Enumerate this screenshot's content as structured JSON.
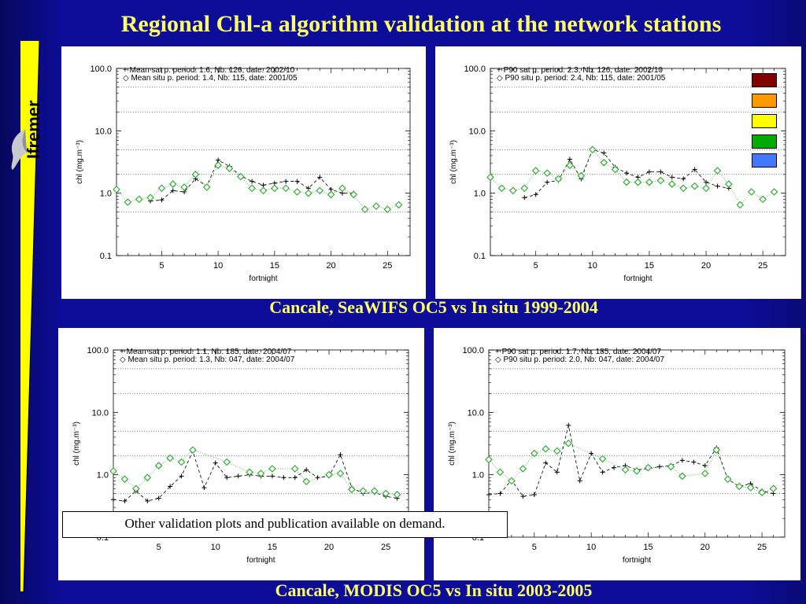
{
  "slide": {
    "title": "Regional Chl-a algorithm validation at the network stations",
    "caption_seawifs": "Cancale, SeaWIFS OC5 vs In situ 1999-2004",
    "caption_modis": "Cancale, MODIS OC5 vs In situ 2003-2005",
    "note": "Other validation plots and publication available on demand.",
    "logo_text": "Ifremer",
    "colors": {
      "background": "#0d0d9a",
      "title": "#ffff66",
      "sat": "#000000",
      "situ": "#22aa22"
    },
    "swatches": [
      "#800000",
      "#ff9900",
      "#ffff00",
      "#00aa00",
      "#4477ff"
    ]
  },
  "chart_data": [
    {
      "type": "scatter",
      "xlabel": "fortnight",
      "ylabel": "chl (mg.m⁻³)",
      "xlim": [
        1,
        27
      ],
      "ylim": [
        0.1,
        100
      ],
      "yscale": "log",
      "xticks": [
        "5",
        "10",
        "15",
        "20",
        "25"
      ],
      "yticks": [
        "0.1",
        "1.0",
        "10.0",
        "100.0"
      ],
      "legend": [
        "+  Mean sat p. period: 1.6, Nb: 126, date: 2002/10",
        "◇  Mean situ p. period: 1.4, Nb: 115, date: 2001/05"
      ],
      "series": [
        {
          "name": "Mean sat",
          "marker": "plus",
          "x": [
            4,
            5,
            6,
            7,
            8,
            9,
            10,
            11,
            12,
            13,
            14,
            15,
            16,
            17,
            18,
            19,
            20,
            21,
            22
          ],
          "y": [
            0.75,
            0.78,
            1.1,
            1.05,
            1.7,
            1.3,
            3.4,
            2.7,
            1.9,
            1.55,
            1.35,
            1.45,
            1.55,
            1.55,
            1.2,
            1.8,
            1.15,
            1.0,
            1.0
          ]
        },
        {
          "name": "Mean situ",
          "marker": "diamond",
          "x": [
            1,
            2,
            3,
            4,
            5,
            6,
            7,
            8,
            9,
            10,
            11,
            12,
            13,
            14,
            15,
            16,
            17,
            18,
            19,
            20,
            21,
            22,
            23,
            24,
            25,
            26
          ],
          "y": [
            1.15,
            0.72,
            0.8,
            0.85,
            1.2,
            1.4,
            1.25,
            2.0,
            1.25,
            2.8,
            2.5,
            1.85,
            1.2,
            1.1,
            1.2,
            1.2,
            1.05,
            1.0,
            1.1,
            0.95,
            1.2,
            0.95,
            0.55,
            0.62,
            0.55,
            0.65
          ]
        }
      ]
    },
    {
      "type": "scatter",
      "xlabel": "fortnight",
      "ylabel": "chl (mg.m⁻³)",
      "xlim": [
        1,
        27
      ],
      "ylim": [
        0.1,
        100
      ],
      "yscale": "log",
      "xticks": [
        "5",
        "10",
        "15",
        "20",
        "25"
      ],
      "yticks": [
        "0.1",
        "1.0",
        "10.0",
        "100.0"
      ],
      "legend": [
        "+  P90 sat p. period: 2.3, Nb: 126, date: 2002/10",
        "◇  P90 situ p. period: 2.4, Nb: 115, date: 2001/05"
      ],
      "series": [
        {
          "name": "P90 sat",
          "marker": "plus",
          "x": [
            4,
            5,
            6,
            7,
            8,
            9,
            10,
            11,
            12,
            13,
            14,
            15,
            16,
            17,
            18,
            19,
            20,
            21,
            22
          ],
          "y": [
            0.85,
            0.95,
            1.5,
            1.6,
            3.5,
            1.7,
            5.0,
            4.4,
            2.6,
            2.1,
            1.8,
            2.2,
            2.2,
            1.8,
            1.7,
            2.4,
            1.5,
            1.3,
            1.2
          ]
        },
        {
          "name": "P90 situ",
          "marker": "diamond",
          "x": [
            1,
            2,
            3,
            4,
            5,
            6,
            7,
            8,
            9,
            10,
            11,
            12,
            13,
            14,
            15,
            16,
            17,
            18,
            19,
            20,
            21,
            22,
            23,
            24,
            25,
            26
          ],
          "y": [
            1.8,
            1.2,
            1.1,
            1.2,
            2.3,
            2.1,
            1.7,
            2.8,
            1.9,
            5.0,
            3.1,
            2.4,
            1.5,
            1.5,
            1.5,
            1.6,
            1.4,
            1.2,
            1.3,
            1.2,
            2.3,
            1.4,
            0.65,
            1.05,
            0.8,
            1.05
          ]
        }
      ]
    },
    {
      "type": "scatter",
      "xlabel": "fortnight",
      "ylabel": "chl (mg.m⁻³)",
      "xlim": [
        1,
        27
      ],
      "ylim": [
        0.1,
        100
      ],
      "yscale": "log",
      "xticks": [
        "5",
        "10",
        "15",
        "20",
        "25"
      ],
      "yticks": [
        "0.1",
        "1.0",
        "10.0",
        "100.0"
      ],
      "legend": [
        "+  Mean sat p. period: 1.1, Nb: 185, date: 2004/07",
        "◇  Mean situ p. period: 1.3, Nb: 047, date: 2004/07"
      ],
      "series": [
        {
          "name": "Mean sat",
          "marker": "plus",
          "x": [
            1,
            2,
            3,
            4,
            5,
            6,
            7,
            8,
            9,
            10,
            11,
            12,
            13,
            14,
            15,
            16,
            17,
            18,
            19,
            20,
            21,
            22,
            23,
            24,
            25,
            26
          ],
          "y": [
            0.4,
            0.38,
            0.55,
            0.38,
            0.42,
            0.65,
            0.95,
            2.4,
            0.62,
            1.55,
            0.9,
            0.95,
            1.0,
            0.95,
            0.95,
            0.9,
            0.9,
            1.2,
            0.9,
            0.95,
            2.1,
            0.62,
            0.5,
            0.52,
            0.45,
            0.42
          ]
        },
        {
          "name": "Mean situ",
          "marker": "diamond",
          "x": [
            1,
            2,
            3,
            4,
            5,
            6,
            7,
            8,
            11,
            13,
            14,
            15,
            17,
            18,
            20,
            21,
            22,
            23,
            24,
            25,
            26
          ],
          "y": [
            1.15,
            0.85,
            0.6,
            0.9,
            1.4,
            1.85,
            1.6,
            2.5,
            1.6,
            1.1,
            1.05,
            1.25,
            1.25,
            0.78,
            1.0,
            1.05,
            0.58,
            0.55,
            0.55,
            0.5,
            0.48
          ]
        }
      ]
    },
    {
      "type": "scatter",
      "xlabel": "fortnight",
      "ylabel": "chl (mg.m⁻³)",
      "xlim": [
        1,
        27
      ],
      "ylim": [
        0.1,
        100
      ],
      "yscale": "log",
      "xticks": [
        "5",
        "10",
        "15",
        "20",
        "25"
      ],
      "yticks": [
        "0.1",
        "1.0",
        "10.0",
        "100.0"
      ],
      "legend": [
        "+  P90 sat p. period: 1.7, Nb: 185, date: 2004/07",
        "◇  P90 situ p. period: 2.0, Nb: 047, date: 2004/07"
      ],
      "series": [
        {
          "name": "P90 sat",
          "marker": "plus",
          "x": [
            1,
            2,
            3,
            4,
            5,
            6,
            7,
            8,
            9,
            10,
            11,
            12,
            13,
            14,
            15,
            16,
            17,
            18,
            19,
            20,
            21,
            22,
            23,
            24,
            25,
            26
          ],
          "y": [
            0.48,
            0.5,
            0.82,
            0.45,
            0.48,
            1.55,
            1.1,
            6.2,
            0.8,
            2.2,
            1.1,
            1.3,
            1.4,
            1.2,
            1.25,
            1.35,
            1.4,
            1.7,
            1.6,
            1.4,
            2.7,
            0.85,
            0.65,
            0.72,
            0.55,
            0.5
          ]
        },
        {
          "name": "P90 situ",
          "marker": "diamond",
          "x": [
            1,
            2,
            3,
            4,
            5,
            6,
            7,
            8,
            11,
            13,
            14,
            15,
            17,
            18,
            20,
            21,
            22,
            23,
            24,
            25,
            26
          ],
          "y": [
            1.75,
            1.1,
            0.8,
            1.25,
            2.2,
            2.6,
            2.4,
            3.2,
            1.8,
            1.2,
            1.15,
            1.3,
            1.35,
            0.95,
            1.05,
            2.5,
            0.85,
            0.65,
            0.62,
            0.52,
            0.6
          ]
        }
      ]
    }
  ]
}
